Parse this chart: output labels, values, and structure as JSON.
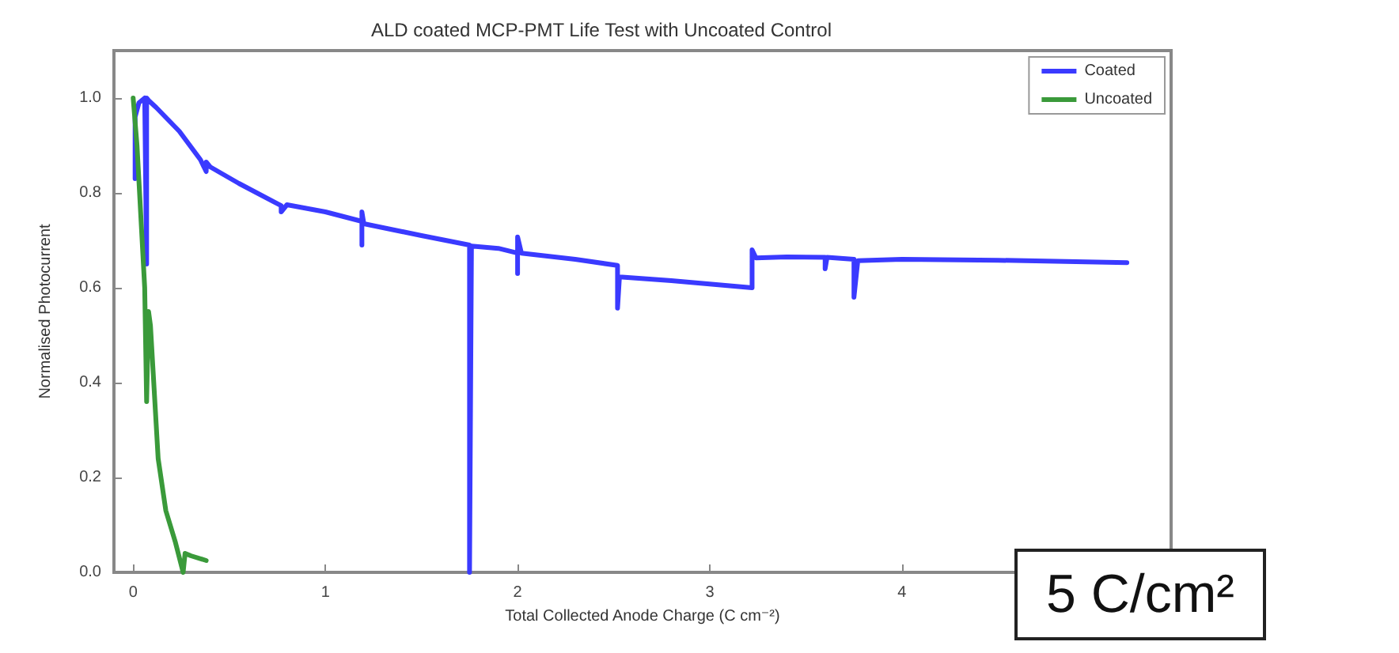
{
  "chart_data": {
    "type": "line",
    "title": "ALD coated MCP-PMT Life Test with Uncoated Control",
    "xlabel": "Total Collected Anode Charge (C cm⁻²)",
    "ylabel": "Normalised Photocurrent",
    "annotations": [
      "5 C/cm²"
    ],
    "xlim": [
      -0.1,
      5.4
    ],
    "xticks": [
      0,
      1,
      2,
      3,
      4
    ],
    "ylim": [
      0,
      1.1
    ],
    "yticks": [
      {
        "value": 0,
        "label": "0.0"
      },
      {
        "value": 0.2,
        "label": "0.2"
      },
      {
        "value": 0.4,
        "label": "0.4"
      },
      {
        "value": 0.6,
        "label": "0.6"
      },
      {
        "value": 0.8,
        "label": "0.8"
      },
      {
        "value": 1.0,
        "label": "1.0"
      }
    ],
    "grid": false,
    "legend": "top right",
    "marker": "none",
    "line_style": "solid",
    "series": [
      {
        "name": "Coated",
        "color": "#3a3aff",
        "x": [
          0.01,
          0.01,
          0.03,
          0.06,
          0.07,
          0.07,
          0.08,
          0.12,
          0.24,
          0.35,
          0.38,
          0.38,
          0.4,
          0.55,
          0.77,
          0.77,
          0.8,
          1.0,
          1.19,
          1.19,
          1.19,
          1.2,
          1.5,
          1.75,
          1.75,
          1.76,
          1.9,
          2.0,
          2.0,
          2.0,
          2.02,
          2.3,
          2.52,
          2.52,
          2.53,
          2.8,
          3.22,
          3.22,
          3.24,
          3.4,
          3.6,
          3.6,
          3.61,
          3.75,
          3.75,
          3.77,
          4.0,
          4.5,
          5.17
        ],
        "values": [
          0.83,
          0.96,
          0.99,
          1.0,
          0.65,
          1.0,
          0.995,
          0.98,
          0.93,
          0.87,
          0.845,
          0.865,
          0.855,
          0.82,
          0.773,
          0.76,
          0.775,
          0.76,
          0.74,
          0.69,
          0.76,
          0.735,
          0.71,
          0.69,
          0,
          0.688,
          0.683,
          0.673,
          0.63,
          0.707,
          0.673,
          0.66,
          0.647,
          0.557,
          0.623,
          0.615,
          0.6,
          0.68,
          0.663,
          0.665,
          0.664,
          0.64,
          0.664,
          0.66,
          0.58,
          0.657,
          0.66,
          0.658,
          0.653
        ]
      },
      {
        "name": "Uncoated",
        "color": "#3a9a3a",
        "x": [
          0.0,
          0.02,
          0.04,
          0.06,
          0.07,
          0.08,
          0.09,
          0.13,
          0.17,
          0.22,
          0.26,
          0.27,
          0.3,
          0.38
        ],
        "values": [
          1.0,
          0.9,
          0.75,
          0.6,
          0.36,
          0.55,
          0.52,
          0.24,
          0.13,
          0.063,
          0.0,
          0.04,
          0.035,
          0.025
        ]
      }
    ]
  }
}
